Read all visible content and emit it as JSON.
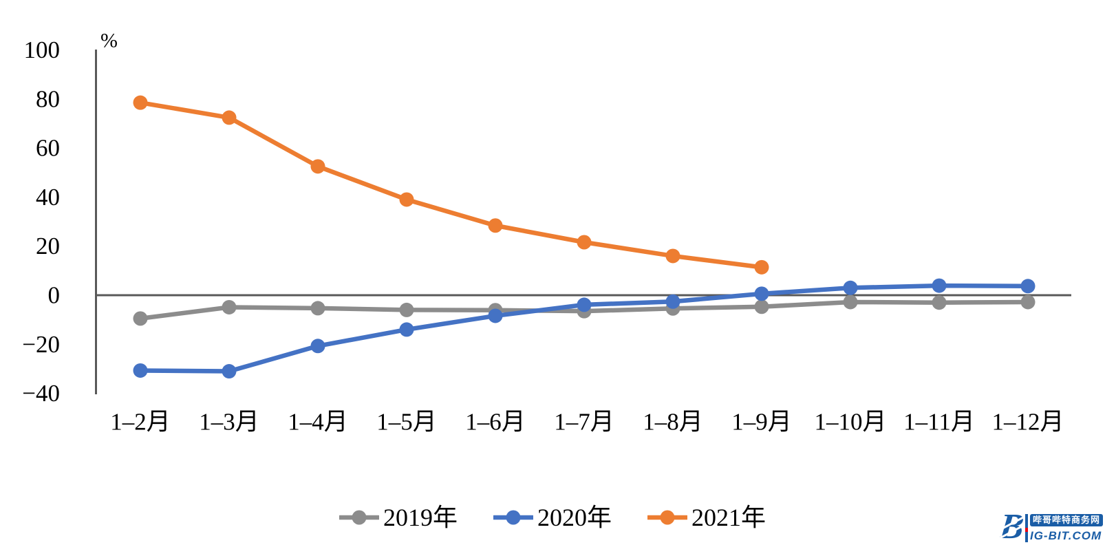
{
  "chart_data": {
    "type": "line",
    "title": "",
    "unit_label": "%",
    "categories": [
      "1–2月",
      "1–3月",
      "1–4月",
      "1–5月",
      "1–6月",
      "1–7月",
      "1–8月",
      "1–9月",
      "1–10月",
      "1–11月",
      "1–12月"
    ],
    "series": [
      {
        "name": "2019年",
        "color": "#8C8C8C",
        "values": [
          -9.5,
          -4.9,
          -5.3,
          -6.0,
          -6.1,
          -6.5,
          -5.4,
          -4.7,
          -2.8,
          -3.0,
          -2.8
        ]
      },
      {
        "name": "2020年",
        "color": "#4472C4",
        "values": [
          -30.7,
          -31.0,
          -20.7,
          -14.0,
          -8.4,
          -3.9,
          -2.6,
          0.6,
          3.0,
          3.9,
          3.7
        ]
      },
      {
        "name": "2021年",
        "color": "#ED7D31",
        "values": [
          78.5,
          72.4,
          52.5,
          39.0,
          28.4,
          21.6,
          16.0,
          11.4,
          null,
          null,
          null
        ]
      }
    ],
    "y_axis": {
      "tick_labels": [
        "100",
        "80",
        "60",
        "40",
        "20",
        "0",
        "−20",
        "−40"
      ],
      "tick_values": [
        100,
        80,
        60,
        40,
        20,
        0,
        -20,
        -40
      ],
      "range": [
        -40,
        100
      ]
    },
    "grid": false,
    "legend_position": "bottom",
    "axis_color": "#595959",
    "text_color": "#000000"
  },
  "watermark": {
    "b_letter": "B",
    "zh_name": "哔哥哔特商务网",
    "en_name": "IG-BIT.COM",
    "blue": "#1A5DA6",
    "red": "#E60012"
  }
}
